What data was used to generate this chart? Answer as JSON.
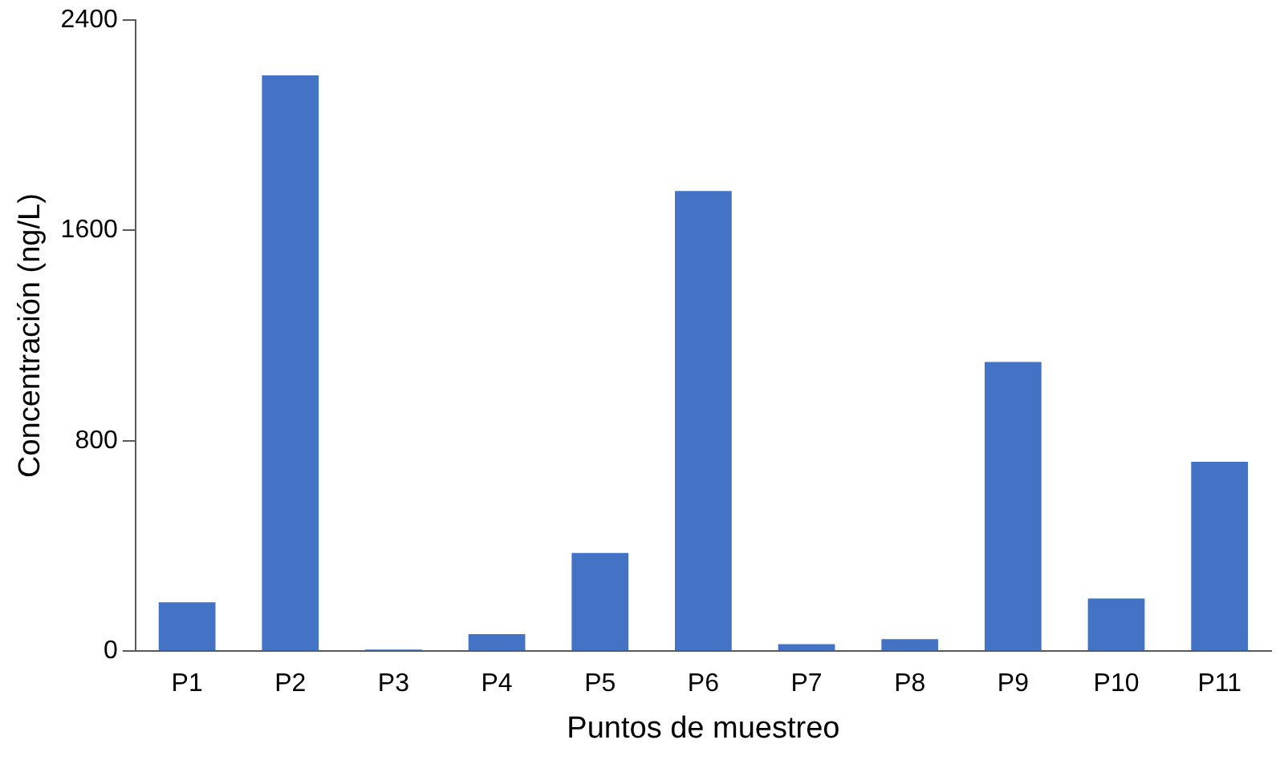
{
  "chart_data": {
    "type": "bar",
    "xlabel": "Puntos de muestreo",
    "ylabel": "Concentración (ng/L)",
    "categories": [
      "P1",
      "P2",
      "P3",
      "P4",
      "P5",
      "P6",
      "P7",
      "P8",
      "P9",
      "P10",
      "P11"
    ],
    "values": [
      185,
      2190,
      5,
      64,
      373,
      1750,
      26,
      45,
      1100,
      200,
      720
    ],
    "color": "#4472c4",
    "ylim": [
      0,
      2400
    ],
    "yticks": [
      0,
      800,
      1600,
      2400
    ],
    "grid": false
  }
}
